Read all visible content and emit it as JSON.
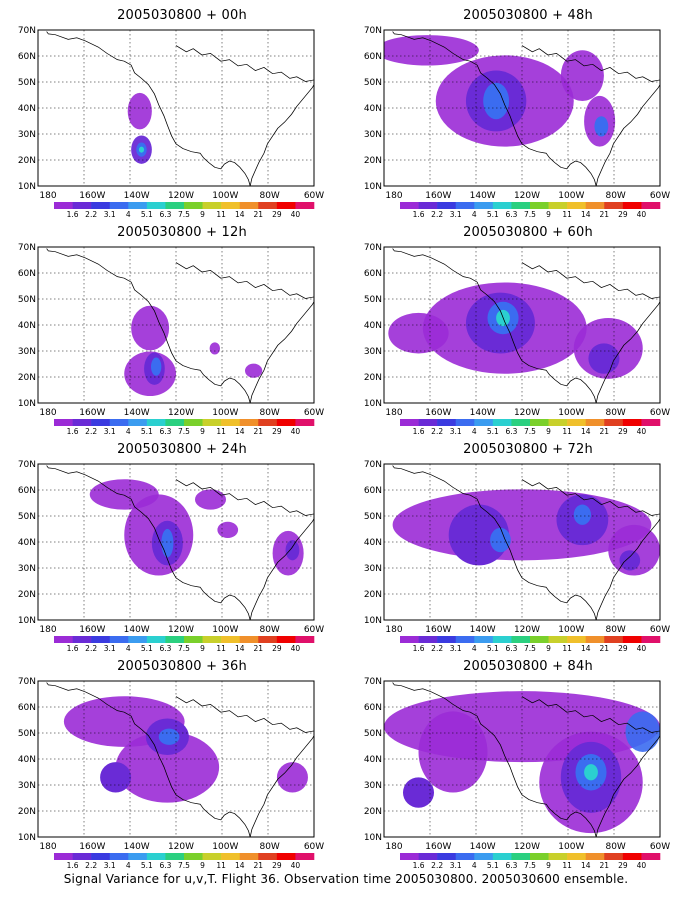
{
  "panels": [
    {
      "title": "2005030800 + 00h",
      "blobs": [
        [
          120,
          118,
          12,
          14,
          "#6a2bd6",
          0.95
        ],
        [
          120,
          118,
          6,
          7,
          "#3b6cf0",
          1
        ],
        [
          120,
          118,
          3,
          3,
          "#2bd0d0",
          1
        ],
        [
          118,
          80,
          14,
          18,
          "#9b2bd6",
          0.9
        ]
      ]
    },
    {
      "title": "2005030800 + 12h",
      "blobs": [
        [
          130,
          80,
          22,
          22,
          "#9b2bd6",
          0.9
        ],
        [
          130,
          125,
          30,
          22,
          "#9b2bd6",
          0.9
        ],
        [
          135,
          120,
          12,
          16,
          "#6a2bd6",
          1
        ],
        [
          137,
          118,
          6,
          9,
          "#3b6cf0",
          1
        ],
        [
          205,
          100,
          6,
          6,
          "#9b2bd6",
          0.9
        ],
        [
          250,
          122,
          10,
          7,
          "#9b2bd6",
          0.9
        ]
      ]
    },
    {
      "title": "2005030800 + 24h",
      "blobs": [
        [
          100,
          30,
          40,
          15,
          "#9b2bd6",
          0.9
        ],
        [
          140,
          70,
          40,
          40,
          "#9b2bd6",
          0.9
        ],
        [
          150,
          78,
          18,
          22,
          "#6a2bd6",
          1
        ],
        [
          150,
          78,
          7,
          14,
          "#3b6cf0",
          1
        ],
        [
          200,
          35,
          18,
          10,
          "#9b2bd6",
          0.9
        ],
        [
          220,
          65,
          12,
          8,
          "#9b2bd6",
          0.9
        ],
        [
          290,
          88,
          18,
          22,
          "#9b2bd6",
          0.9
        ],
        [
          295,
          85,
          8,
          10,
          "#6a2bd6",
          1
        ]
      ]
    },
    {
      "title": "2005030800 + 36h",
      "blobs": [
        [
          100,
          40,
          70,
          25,
          "#9b2bd6",
          0.9
        ],
        [
          150,
          85,
          60,
          35,
          "#9b2bd6",
          0.9
        ],
        [
          150,
          55,
          25,
          18,
          "#6a2bd6",
          1
        ],
        [
          152,
          55,
          12,
          8,
          "#3b6cf0",
          1
        ],
        [
          90,
          95,
          18,
          15,
          "#6a2bd6",
          1
        ],
        [
          295,
          95,
          18,
          15,
          "#9b2bd6",
          0.9
        ]
      ]
    },
    {
      "title": "2005030800 + 48h",
      "blobs": [
        [
          50,
          20,
          60,
          15,
          "#9b2bd6",
          0.9
        ],
        [
          140,
          70,
          80,
          45,
          "#9b2bd6",
          0.9
        ],
        [
          130,
          70,
          35,
          30,
          "#6a2bd6",
          1
        ],
        [
          130,
          70,
          15,
          18,
          "#3b6cf0",
          1
        ],
        [
          230,
          45,
          25,
          25,
          "#9b2bd6",
          0.9
        ],
        [
          250,
          90,
          18,
          25,
          "#9b2bd6",
          0.9
        ],
        [
          252,
          95,
          8,
          10,
          "#3b6cf0",
          1
        ]
      ]
    },
    {
      "title": "2005030800 + 60h",
      "blobs": [
        [
          40,
          85,
          35,
          20,
          "#9b2bd6",
          0.9
        ],
        [
          140,
          80,
          95,
          45,
          "#9b2bd6",
          0.9
        ],
        [
          135,
          75,
          40,
          30,
          "#6a2bd6",
          1
        ],
        [
          138,
          70,
          18,
          16,
          "#3b6cf0",
          1
        ],
        [
          138,
          70,
          8,
          8,
          "#2bd0d0",
          1
        ],
        [
          260,
          100,
          40,
          30,
          "#9b2bd6",
          0.9
        ],
        [
          255,
          110,
          18,
          15,
          "#6a2bd6",
          1
        ]
      ]
    },
    {
      "title": "2005030800 + 72h",
      "blobs": [
        [
          160,
          60,
          150,
          35,
          "#9b2bd6",
          0.9
        ],
        [
          110,
          70,
          35,
          30,
          "#6a2bd6",
          1
        ],
        [
          135,
          75,
          12,
          12,
          "#3b6cf0",
          1
        ],
        [
          230,
          55,
          30,
          25,
          "#6a2bd6",
          1
        ],
        [
          230,
          50,
          10,
          10,
          "#3b6cf0",
          1
        ],
        [
          290,
          85,
          30,
          25,
          "#9b2bd6",
          0.9
        ],
        [
          285,
          95,
          12,
          10,
          "#6a2bd6",
          1
        ]
      ]
    },
    {
      "title": "2005030800 + 84h",
      "blobs": [
        [
          160,
          45,
          160,
          35,
          "#9b2bd6",
          0.9
        ],
        [
          80,
          70,
          40,
          40,
          "#9b2bd6",
          0.9
        ],
        [
          240,
          100,
          60,
          50,
          "#9b2bd6",
          0.9
        ],
        [
          240,
          95,
          35,
          35,
          "#6a2bd6",
          1
        ],
        [
          240,
          90,
          18,
          18,
          "#3b6cf0",
          1
        ],
        [
          240,
          90,
          8,
          8,
          "#2bd0d0",
          1
        ],
        [
          40,
          110,
          18,
          15,
          "#6a2bd6",
          1
        ],
        [
          300,
          50,
          20,
          20,
          "#3b6cf0",
          0.9
        ]
      ]
    }
  ],
  "axes": {
    "x_ticks": [
      "180",
      "160W",
      "140W",
      "120W",
      "100W",
      "80W",
      "60W"
    ],
    "y_ticks": [
      "10N",
      "20N",
      "30N",
      "40N",
      "50N",
      "60N",
      "70N"
    ]
  },
  "colorbar": {
    "labels": [
      "1.6",
      "2.2",
      "3.1",
      "4",
      "5.1",
      "6.3",
      "7.5",
      "9",
      "11",
      "14",
      "21",
      "29",
      "40"
    ],
    "colors": [
      "#9b2bd6",
      "#6a2bd6",
      "#3b3be0",
      "#3b6cf0",
      "#3b9cf0",
      "#2bd0d0",
      "#2bd080",
      "#7ad02b",
      "#c8d02b",
      "#f0c02b",
      "#f0902b",
      "#e04020",
      "#f00000",
      "#e0106a"
    ]
  },
  "caption": "Signal Variance for u,v,T. Flight 36. Observation time 2005030800. 2005030600 ensemble."
}
